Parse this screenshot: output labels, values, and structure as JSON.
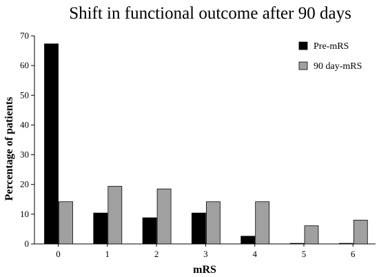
{
  "chart_data": {
    "type": "bar",
    "title": "Shift in functional outcome after 90 days",
    "xlabel": "mRS",
    "ylabel": "Percentage of patients",
    "categories": [
      "0",
      "1",
      "2",
      "3",
      "4",
      "5",
      "6"
    ],
    "ylim": [
      0,
      70
    ],
    "yticks": [
      "0",
      "10",
      "20",
      "30",
      "40",
      "50",
      "60",
      "70"
    ],
    "grid": false,
    "legend_position": "top-right",
    "series": [
      {
        "name": "Pre-mRS",
        "color": "#000000",
        "values": [
          67.3,
          10.4,
          8.8,
          10.4,
          2.6,
          0.2,
          0.2
        ]
      },
      {
        "name": "90 day-mRS",
        "color": "#a0a0a0",
        "values": [
          14.2,
          19.4,
          18.5,
          14.2,
          14.2,
          6.1,
          8.0
        ]
      }
    ]
  }
}
